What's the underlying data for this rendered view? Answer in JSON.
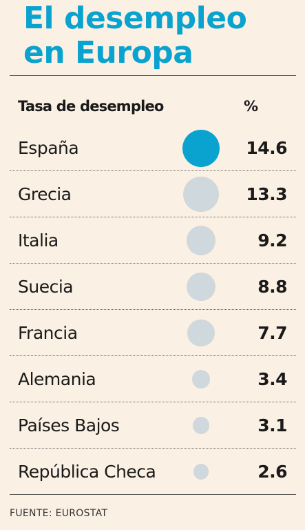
{
  "title": {
    "line1": "El desempleo",
    "line2": "en Europa"
  },
  "header": {
    "label": "Tasa de desempleo",
    "unit": "%"
  },
  "source": "FUENTE: EUROSTAT",
  "colors": {
    "title": "#0aa3cf",
    "highlight": "#0aa3cf",
    "bubble": "#cfd8dc",
    "background": "#fbf0e4"
  },
  "chart_data": {
    "type": "table",
    "title": "El desempleo en Europa",
    "categories": [
      "España",
      "Grecia",
      "Italia",
      "Suecia",
      "Francia",
      "Alemania",
      "Países Bajos",
      "República Checa"
    ],
    "series": [
      {
        "name": "Tasa de desempleo",
        "values": [
          14.6,
          13.3,
          9.2,
          8.8,
          7.7,
          3.4,
          3.1,
          2.6
        ]
      }
    ],
    "unit": "%",
    "highlighted": "España"
  }
}
